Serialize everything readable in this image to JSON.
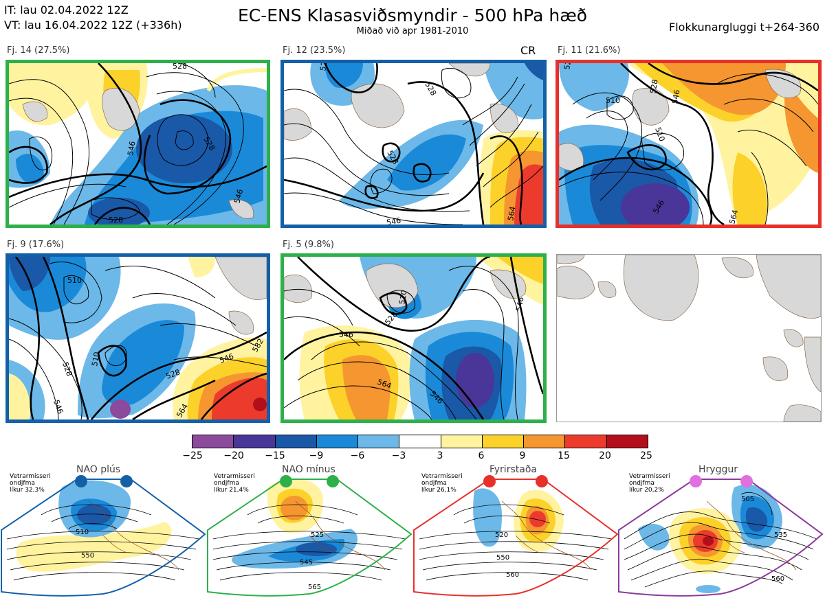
{
  "header": {
    "it": "IT: lau 02.04.2022 12Z",
    "vt": "VT: lau 16.04.2022 12Z  (+336h)",
    "title": "EC-ENS Klasasviðsmyndir - 500 hPa hæð",
    "subtitle": "Miðað við apr 1981-2010",
    "window": "Flokkunargluggi t+264-360"
  },
  "panels": [
    {
      "label": "Fj. 14 (27.5%)",
      "border": "#2db04a",
      "contours": [
        "528",
        "546",
        "528",
        "546",
        "528"
      ]
    },
    {
      "label": "Fj. 12 (23.5%)",
      "border": "#1460a8",
      "tag": "CR",
      "contours": [
        "528",
        "528",
        "528",
        "546",
        "564"
      ]
    },
    {
      "label": "Fj. 11 (21.6%)",
      "border": "#e8302a",
      "contours": [
        "528",
        "510",
        "528",
        "546",
        "546",
        "510",
        "564"
      ]
    },
    {
      "label": "Fj. 9 (17.6%)",
      "border": "#1460a8",
      "contours": [
        "510",
        "510",
        "528",
        "528",
        "546",
        "546",
        "564",
        "582"
      ]
    },
    {
      "label": "Fj. 5 (9.8%)",
      "border": "#2db04a",
      "contours": [
        "510",
        "528",
        "546",
        "564",
        "546",
        "546"
      ]
    }
  ],
  "colorbar": {
    "ticks": [
      "−25",
      "−20",
      "−15",
      "−9",
      "−6",
      "−3",
      "3",
      "6",
      "9",
      "15",
      "20",
      "25"
    ],
    "colors": [
      "#8b4a9c",
      "#4a3598",
      "#1a58a8",
      "#1a8ad8",
      "#6cb8e8",
      "#ffffff",
      "#fff3a0",
      "#fcd12a",
      "#f59630",
      "#ec3b2c",
      "#b30f1a"
    ]
  },
  "regimes": [
    {
      "title": "NAO plús",
      "note": [
        "Vetrarmisseri",
        "ondjfma",
        "líkur 32,3%"
      ],
      "dot_color": "#1460a8",
      "border": "#1460a8",
      "contours": [
        "510",
        "550"
      ]
    },
    {
      "title": "NAO mínus",
      "note": [
        "Vetrarmisseri",
        "ondjfma",
        "líkur 21,4%"
      ],
      "dot_color": "#2db04a",
      "border": "#2db04a",
      "contours": [
        "525",
        "545",
        "565"
      ]
    },
    {
      "title": "Fyrirstaða",
      "note": [
        "Vetrarmisseri",
        "ondjfma",
        "líkur 26,1%"
      ],
      "dot_color": "#e8302a",
      "border": "#e8302a",
      "contours": [
        "520",
        "550",
        "560"
      ]
    },
    {
      "title": "Hryggur",
      "note": [
        "Vetrarmisseri",
        "ondjfma",
        "líkur 20,2%"
      ],
      "dot_color": "#e070e0",
      "border": "#8a3a9a",
      "contours": [
        "505",
        "535",
        "560"
      ]
    }
  ]
}
